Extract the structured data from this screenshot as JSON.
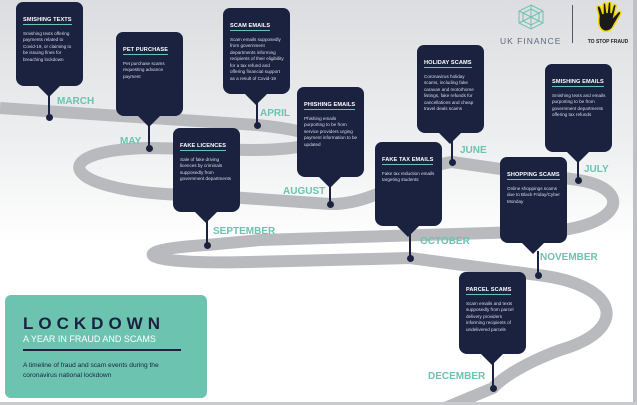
{
  "logos": {
    "uk_finance": "UK FINANCE",
    "take_five_badge": "TAKE FIVE",
    "take_five_tag": "TO STOP FRAUD"
  },
  "title": {
    "main": "LOCKDOWN",
    "subtitle": "A YEAR IN FRAUD AND SCAMS",
    "description": "A timeline of fraud and scam events during the coronavirus national lockdown"
  },
  "colors": {
    "navy": "#1b2240",
    "teal": "#6cc3b0",
    "road": "#b9babd"
  },
  "events": [
    {
      "month": "MARCH",
      "title": "SMISHING TEXTS",
      "text": "Smishing texts offering payments related to Covid-19, or claiming to be issuing fines for breaching lockdown"
    },
    {
      "month": "APRIL",
      "title": "SCAM EMAILS",
      "text": "Scam emails supposedly from government departments informing recipients of their eligibility for a tax refund and offering financial support as a result of Covid-19"
    },
    {
      "month": "MAY",
      "title": "PET PURCHASE",
      "text": "Pet purchase scams requesting advance payment"
    },
    {
      "month": "JUNE",
      "title": "HOLIDAY SCAMS",
      "text": "Coronavirus holiday scams, including fake caravan and motorhome listings, fake refunds for cancellations and cheap travel deals scams"
    },
    {
      "month": "JULY",
      "title": "SMISHING EMAILS",
      "text": "Smishing texts and emails purporting to be from government departments offering tax refunds"
    },
    {
      "month": "AUGUST",
      "title": "PHISHING EMAILS",
      "text": "Phishing emails purporting to be from service providers urging payment information to be updated"
    },
    {
      "month": "SEPTEMBER",
      "title": "FAKE LICENCES",
      "text": "Sale of fake driving licences by criminals supposedly from government departments"
    },
    {
      "month": "OCTOBER",
      "title": "FAKE TAX EMAILS",
      "text": "Fake tax reduction emails targeting students"
    },
    {
      "month": "NOVEMBER",
      "title": "SHOPPING SCAMS",
      "text": "Online shoppings scams due to Black Friday/Cyber Monday"
    },
    {
      "month": "DECEMBER",
      "title": "PARCEL SCAMS",
      "text": "Scam emails and texts supposedly from parcel delivery providers informing recipients of undelivered parcels"
    }
  ]
}
